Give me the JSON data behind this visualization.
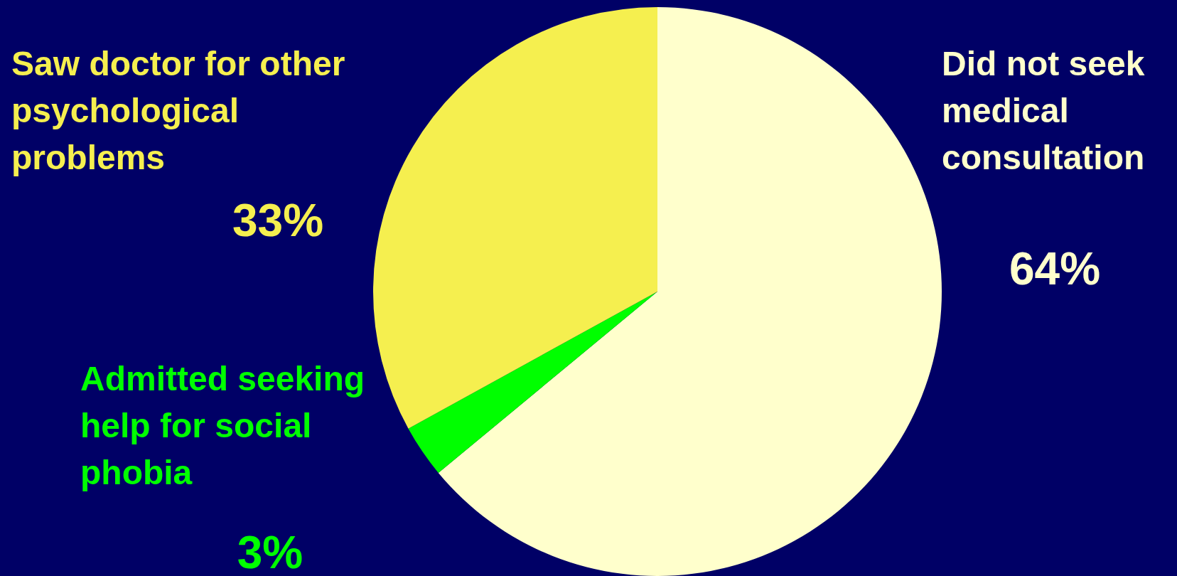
{
  "chart_data": {
    "type": "pie",
    "categories": [
      "Did not seek medical consultation",
      "Admitted seeking help for social phobia",
      "Saw doctor for other psychological problems"
    ],
    "values": [
      64,
      3,
      33
    ],
    "colors": [
      "#ffffcc",
      "#00ff00",
      "#f5ef4f"
    ],
    "value_labels": [
      "64%",
      "3%",
      "33%"
    ],
    "legend": false
  }
}
